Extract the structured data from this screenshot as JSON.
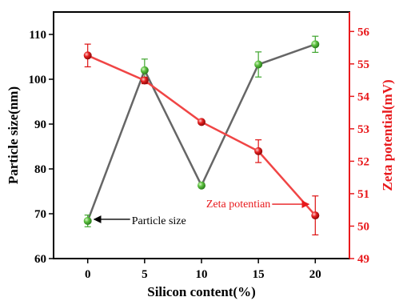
{
  "chart_data": {
    "type": "line",
    "x": [
      0,
      5,
      10,
      15,
      20
    ],
    "xlabel": "Silicon content(%)",
    "xlim": [
      -3,
      23
    ],
    "xticks": [
      0,
      5,
      10,
      15,
      20
    ],
    "grid": false,
    "series": [
      {
        "axis": "left",
        "color": "#666666",
        "marker_color": "#3fa52e",
        "values": [
          68.4,
          102.0,
          76.3,
          103.3,
          107.8
        ],
        "errors": [
          1.3,
          2.5,
          0.0,
          2.8,
          1.8
        ]
      },
      {
        "axis": "right",
        "color": "#f04545",
        "marker_color": "#dd1111",
        "values": [
          55.26,
          54.49,
          53.21,
          52.31,
          50.33
        ],
        "errors": [
          0.35,
          0.1,
          0.0,
          0.35,
          0.6
        ]
      }
    ],
    "y_left": {
      "label": "Particle size(nm)",
      "lim": [
        60,
        115
      ],
      "ticks": [
        60,
        70,
        80,
        90,
        100,
        110
      ],
      "color": "#000000"
    },
    "y_right": {
      "label": "Zeta potential(mV)",
      "lim": [
        49,
        56.6
      ],
      "ticks": [
        49,
        50,
        51,
        52,
        53,
        54,
        55,
        56
      ],
      "color": "#e8191c"
    },
    "annotations": [
      {
        "text": "Particle size",
        "color": "#000000",
        "series_index": 0,
        "point_index": 0
      },
      {
        "text": "Zeta potentian",
        "color": "#e8191c",
        "series_index": 1,
        "point_index": 4
      }
    ]
  }
}
